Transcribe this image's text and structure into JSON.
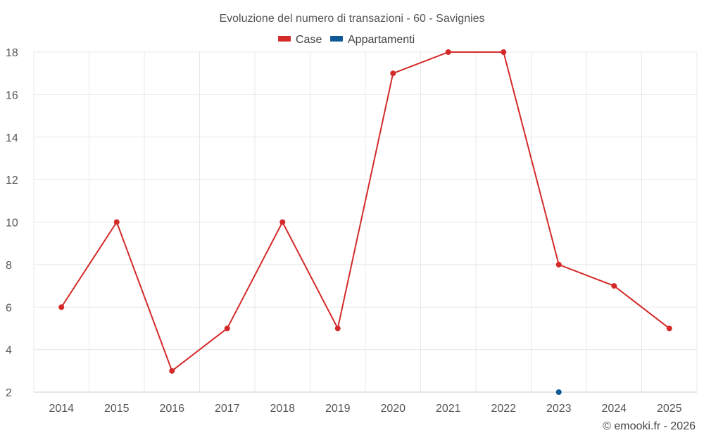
{
  "chart_data": {
    "type": "line",
    "title": "Evoluzione del numero di transazioni - 60 - Savignies",
    "categories": [
      "2014",
      "2015",
      "2016",
      "2017",
      "2018",
      "2019",
      "2020",
      "2021",
      "2022",
      "2023",
      "2024",
      "2025"
    ],
    "series": [
      {
        "name": "Case",
        "color": "#d42a2a",
        "values": [
          6,
          10,
          3,
          5,
          10,
          5,
          17,
          18,
          18,
          8,
          7,
          5
        ]
      },
      {
        "name": "Appartamenti",
        "color": "#0f5a96",
        "values": [
          null,
          null,
          null,
          null,
          null,
          null,
          null,
          null,
          null,
          2,
          null,
          null
        ]
      }
    ],
    "ylim": [
      2,
      18
    ],
    "yticks": [
      2,
      4,
      6,
      8,
      10,
      12,
      14,
      16,
      18
    ],
    "grid": true,
    "legend": "top-center",
    "xlabel": "",
    "ylabel": ""
  },
  "credit": "© emooki.fr - 2026"
}
